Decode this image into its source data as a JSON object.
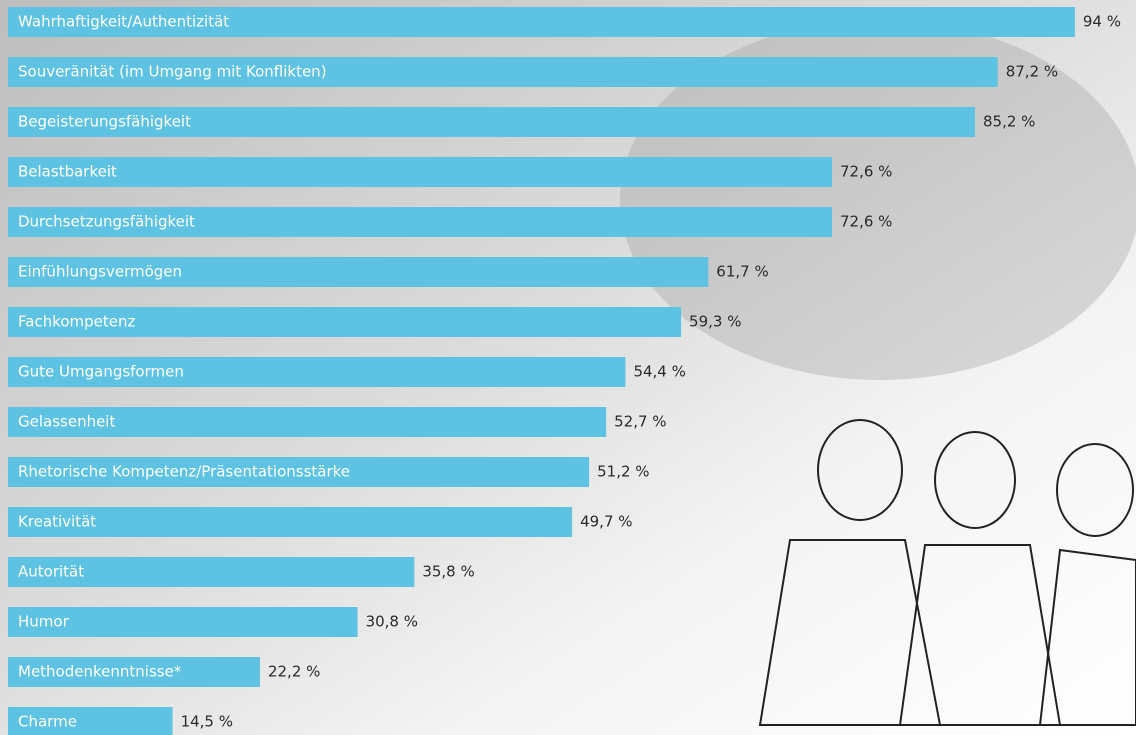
{
  "chart_data": {
    "type": "bar",
    "orientation": "horizontal",
    "categories": [
      "Wahrhaftigkeit/Authentizität",
      "Souveränität (im Umgang mit Konflikten)",
      "Begeisterungsfähigkeit",
      "Belastbarkeit",
      "Durchsetzungsfähigkeit",
      "Einfühlungsvermögen",
      "Fachkompetenz",
      "Gute Umgangsformen",
      "Gelassenheit",
      "Rhetorische Kompetenz/Präsentationsstärke",
      "Kreativität",
      "Autorität",
      "Humor",
      "Methodenkenntnisse*",
      "Charme"
    ],
    "values": [
      94,
      87.2,
      85.2,
      72.6,
      72.6,
      61.7,
      59.3,
      54.4,
      52.7,
      51.2,
      49.7,
      35.8,
      30.8,
      22.2,
      14.5
    ],
    "value_labels": [
      "94 %",
      "87,2 %",
      "85,2 %",
      "72,6 %",
      "72,6 %",
      "61,7 %",
      "59,3 %",
      "54,4 %",
      "52,7 %",
      "51,2 %",
      "49,7 %",
      "35,8 %",
      "30,8 %",
      "22,2 %",
      "14,5 %"
    ],
    "xlim": [
      0,
      100
    ],
    "color": "#5ec2e2"
  }
}
